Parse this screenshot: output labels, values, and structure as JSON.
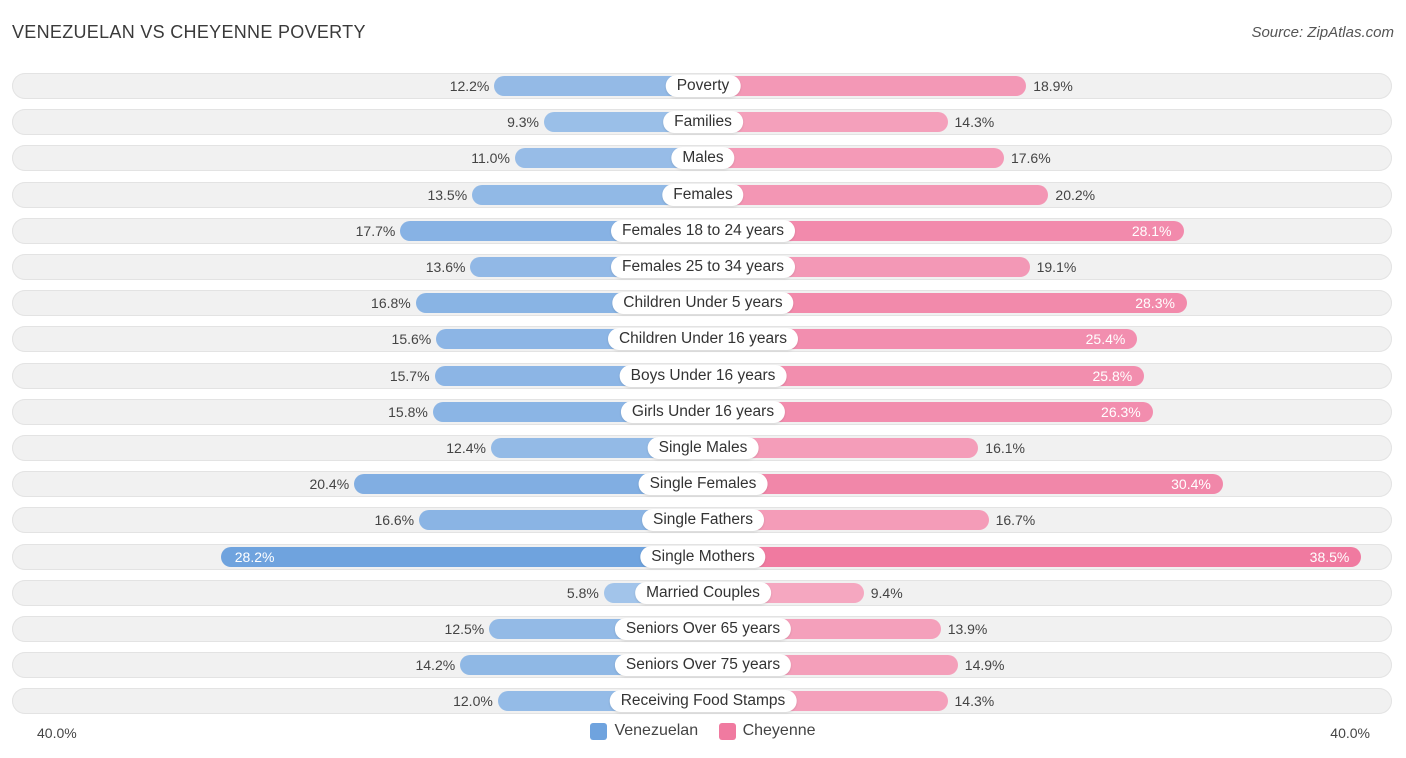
{
  "title": "VENEZUELAN VS CHEYENNE POVERTY",
  "source": "Source: ZipAtlas.com",
  "colors": {
    "left": "#6fa3de",
    "right": "#f07aa0",
    "left_light": "#aac9ee",
    "right_light": "#f6a9c1"
  },
  "axis": {
    "left_label": "40.0%",
    "right_label": "40.0%"
  },
  "legend": {
    "left": "Venezuelan",
    "right": "Cheyenne"
  },
  "chart_data": {
    "type": "bar",
    "orientation": "horizontal-diverging",
    "title": "VENEZUELAN VS CHEYENNE POVERTY",
    "xlim": [
      -40,
      40
    ],
    "categories": [
      "Poverty",
      "Families",
      "Males",
      "Females",
      "Females 18 to 24 years",
      "Females 25 to 34 years",
      "Children Under 5 years",
      "Children Under 16 years",
      "Boys Under 16 years",
      "Girls Under 16 years",
      "Single Males",
      "Single Females",
      "Single Fathers",
      "Single Mothers",
      "Married Couples",
      "Seniors Over 65 years",
      "Seniors Over 75 years",
      "Receiving Food Stamps"
    ],
    "series": [
      {
        "name": "Venezuelan",
        "values": [
          12.2,
          9.3,
          11.0,
          13.5,
          17.7,
          13.6,
          16.8,
          15.6,
          15.7,
          15.8,
          12.4,
          20.4,
          16.6,
          28.2,
          5.8,
          12.5,
          14.2,
          12.0
        ],
        "labels": [
          "12.2%",
          "9.3%",
          "11.0%",
          "13.5%",
          "17.7%",
          "13.6%",
          "16.8%",
          "15.6%",
          "15.7%",
          "15.8%",
          "12.4%",
          "20.4%",
          "16.6%",
          "28.2%",
          "5.8%",
          "12.5%",
          "14.2%",
          "12.0%"
        ]
      },
      {
        "name": "Cheyenne",
        "values": [
          18.9,
          14.3,
          17.6,
          20.2,
          28.1,
          19.1,
          28.3,
          25.4,
          25.8,
          26.3,
          16.1,
          30.4,
          16.7,
          38.5,
          9.4,
          13.9,
          14.9,
          14.3
        ],
        "labels": [
          "18.9%",
          "14.3%",
          "17.6%",
          "20.2%",
          "28.1%",
          "19.1%",
          "28.3%",
          "25.4%",
          "25.8%",
          "26.3%",
          "16.1%",
          "30.4%",
          "16.7%",
          "38.5%",
          "9.4%",
          "13.9%",
          "14.9%",
          "14.3%"
        ]
      }
    ]
  }
}
